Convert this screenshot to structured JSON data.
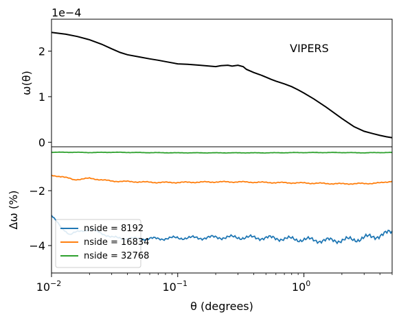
{
  "chart_data": [
    {
      "type": "line",
      "panel": "top",
      "ylabel": "ω(θ)",
      "offset_text": "1e−4",
      "annotation": "VIPERS",
      "x_scale": "log",
      "xlim": [
        0.01,
        5.0
      ],
      "ylim": [
        -0.1,
        2.7
      ],
      "yticks": [
        0,
        1,
        2
      ],
      "ytick_labels": [
        "0",
        "1",
        "2"
      ],
      "grid": false,
      "series": [
        {
          "color": "#000000",
          "x": [
            0.01,
            0.013,
            0.016,
            0.02,
            0.025,
            0.03,
            0.035,
            0.04,
            0.05,
            0.06,
            0.07,
            0.08,
            0.1,
            0.12,
            0.15,
            0.2,
            0.22,
            0.25,
            0.27,
            0.3,
            0.33,
            0.35,
            0.4,
            0.45,
            0.5,
            0.55,
            0.6,
            0.7,
            0.8,
            0.9,
            1.0,
            1.2,
            1.5,
            2.0,
            2.5,
            3.0,
            3.5,
            4.0,
            4.5,
            5.0
          ],
          "y": [
            2.41,
            2.37,
            2.32,
            2.25,
            2.15,
            2.05,
            1.97,
            1.92,
            1.87,
            1.83,
            1.8,
            1.77,
            1.72,
            1.71,
            1.69,
            1.66,
            1.68,
            1.69,
            1.67,
            1.69,
            1.66,
            1.6,
            1.53,
            1.48,
            1.43,
            1.38,
            1.34,
            1.28,
            1.22,
            1.15,
            1.08,
            0.95,
            0.77,
            0.52,
            0.34,
            0.24,
            0.19,
            0.15,
            0.12,
            0.1
          ]
        }
      ]
    },
    {
      "type": "line",
      "panel": "bottom",
      "xlabel": "θ (degrees)",
      "ylabel": "Δω (%)",
      "x_scale": "log",
      "xlim": [
        0.01,
        5.0
      ],
      "ylim": [
        -5.0,
        -0.4
      ],
      "xticks": [
        0.01,
        0.1,
        1
      ],
      "xtick_labels": [
        "10−2",
        "10−1",
        "100"
      ],
      "yticks": [
        -4,
        -2
      ],
      "ytick_labels": [
        "−4",
        "−2"
      ],
      "legend": "bottom-left",
      "grid": false,
      "series": [
        {
          "name": "nside = 8192",
          "color": "#1f77b4",
          "x": [
            0.01,
            0.012,
            0.014,
            0.016,
            0.02,
            0.025,
            0.03,
            0.04,
            0.05,
            0.07,
            0.1,
            0.15,
            0.2,
            0.3,
            0.5,
            0.7,
            1.0,
            1.5,
            2.0,
            2.5,
            3.0,
            3.5,
            4.0,
            4.5,
            5.0
          ],
          "y": [
            -2.9,
            -3.35,
            -3.6,
            -3.5,
            -3.4,
            -3.55,
            -3.7,
            -3.75,
            -3.75,
            -3.75,
            -3.72,
            -3.72,
            -3.7,
            -3.7,
            -3.72,
            -3.75,
            -3.78,
            -3.82,
            -3.8,
            -3.78,
            -3.72,
            -3.68,
            -3.62,
            -3.58,
            -3.5
          ]
        },
        {
          "name": "nside = 16834",
          "color": "#ff7f0e",
          "x": [
            0.01,
            0.012,
            0.015,
            0.02,
            0.03,
            0.05,
            0.07,
            0.1,
            0.2,
            0.3,
            0.5,
            1.0,
            2.0,
            3.0,
            4.0,
            5.0
          ],
          "y": [
            -1.45,
            -1.48,
            -1.6,
            -1.55,
            -1.65,
            -1.68,
            -1.7,
            -1.7,
            -1.68,
            -1.68,
            -1.7,
            -1.72,
            -1.75,
            -1.74,
            -1.72,
            -1.65
          ]
        },
        {
          "name": "nside = 32768",
          "color": "#2ca02c",
          "x": [
            0.01,
            0.015,
            0.02,
            0.03,
            0.05,
            0.1,
            0.2,
            0.5,
            1.0,
            2.0,
            3.0,
            4.0,
            5.0
          ],
          "y": [
            -0.6,
            -0.6,
            -0.61,
            -0.6,
            -0.61,
            -0.62,
            -0.62,
            -0.62,
            -0.61,
            -0.61,
            -0.62,
            -0.61,
            -0.61
          ]
        }
      ]
    }
  ]
}
